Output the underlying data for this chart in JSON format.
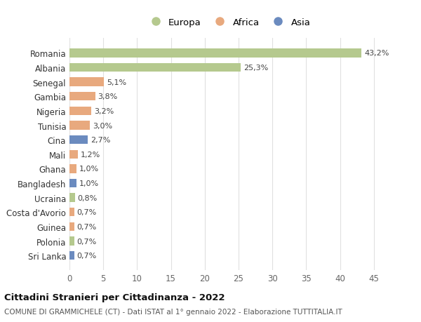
{
  "countries": [
    "Romania",
    "Albania",
    "Senegal",
    "Gambia",
    "Nigeria",
    "Tunisia",
    "Cina",
    "Mali",
    "Ghana",
    "Bangladesh",
    "Ucraina",
    "Costa d'Avorio",
    "Guinea",
    "Polonia",
    "Sri Lanka"
  ],
  "values": [
    43.2,
    25.3,
    5.1,
    3.8,
    3.2,
    3.0,
    2.7,
    1.2,
    1.0,
    1.0,
    0.8,
    0.7,
    0.7,
    0.7,
    0.7
  ],
  "labels": [
    "43,2%",
    "25,3%",
    "5,1%",
    "3,8%",
    "3,2%",
    "3,0%",
    "2,7%",
    "1,2%",
    "1,0%",
    "1,0%",
    "0,8%",
    "0,7%",
    "0,7%",
    "0,7%",
    "0,7%"
  ],
  "continents": [
    "Europa",
    "Europa",
    "Africa",
    "Africa",
    "Africa",
    "Africa",
    "Asia",
    "Africa",
    "Africa",
    "Asia",
    "Europa",
    "Africa",
    "Africa",
    "Europa",
    "Asia"
  ],
  "colors": {
    "Europa": "#b5c98e",
    "Africa": "#e8a97e",
    "Asia": "#6b8bbf"
  },
  "title_bold": "Cittadini Stranieri per Cittadinanza - 2022",
  "subtitle": "COMUNE DI GRAMMICHELE (CT) - Dati ISTAT al 1° gennaio 2022 - Elaborazione TUTTITALIA.IT",
  "xlim": [
    0,
    47
  ],
  "xticks": [
    0,
    5,
    10,
    15,
    20,
    25,
    30,
    35,
    40,
    45
  ],
  "background_color": "#ffffff",
  "grid_color": "#e0e0e0"
}
